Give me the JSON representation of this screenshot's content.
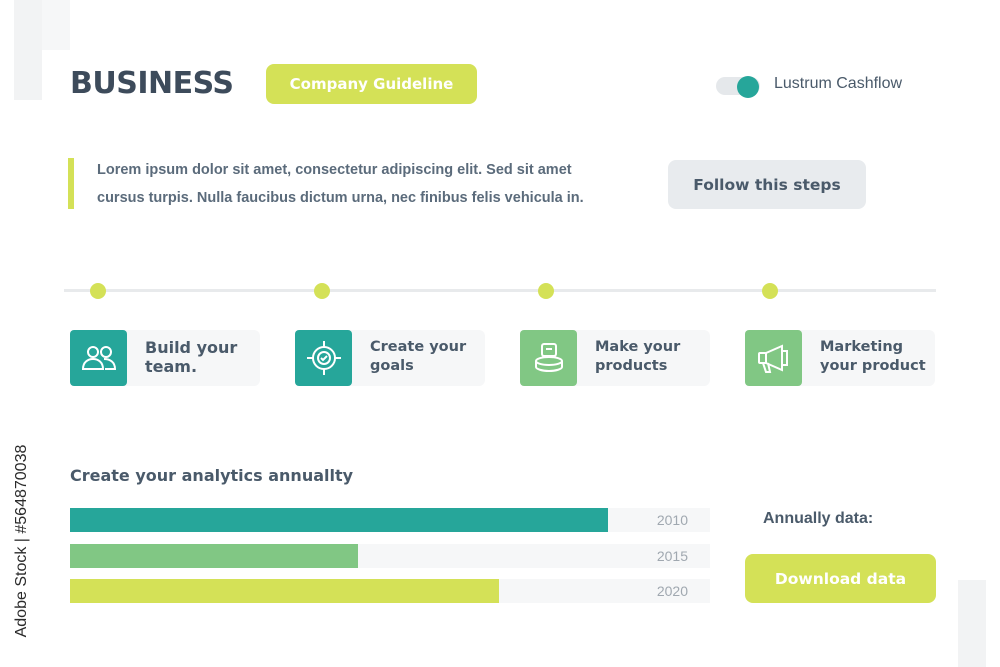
{
  "header": {
    "title": "BUSINESS",
    "guideline_label": "Company Guideline",
    "toggle_label": "Lustrum Cashflow",
    "toggle_on": true
  },
  "intro": {
    "line1": "Lorem ipsum dolor sit amet, consectetur adipiscing elit. Sed sit amet",
    "line2": "cursus turpis. Nulla faucibus dictum urna, nec finibus felis vehicula in.",
    "follow_button": "Follow this steps"
  },
  "steps": [
    {
      "line1": "Build your",
      "line2": "team.",
      "icon": "team-icon",
      "color": "#26a69a"
    },
    {
      "line1": "Create your",
      "line2": "goals",
      "icon": "target-icon",
      "color": "#26a69a"
    },
    {
      "line1": "Make your",
      "line2": "products",
      "icon": "product-icon",
      "color": "#81c784"
    },
    {
      "line1": "Marketing",
      "line2": "your product",
      "icon": "megaphone-icon",
      "color": "#81c784"
    }
  ],
  "analytics": {
    "title": "Create your analytics annuallty",
    "annual_label": "Annually data:",
    "download_button": "Download data"
  },
  "chart_data": {
    "type": "bar",
    "orientation": "horizontal",
    "categories": [
      "2010",
      "2015",
      "2020"
    ],
    "values": [
      0.84,
      0.45,
      0.67
    ],
    "colors": [
      "#26a69a",
      "#81c784",
      "#d4e157"
    ]
  },
  "colors": {
    "accent_lime": "#d4e157",
    "accent_teal": "#26a69a",
    "accent_green": "#81c784",
    "text": "#4a5a6a"
  },
  "watermark": "Adobe Stock | #564870038"
}
